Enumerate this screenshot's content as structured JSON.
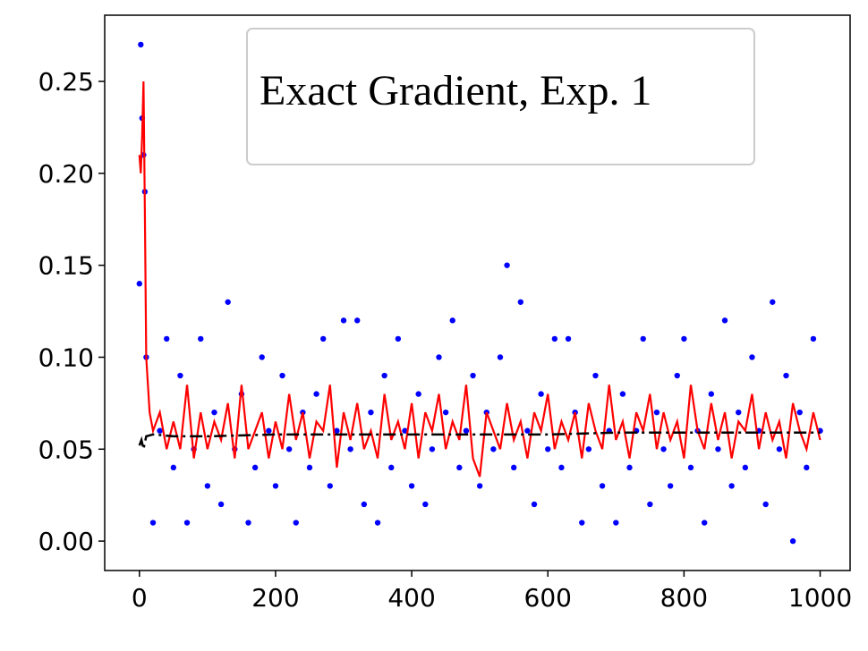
{
  "chart_data": {
    "type": "scatter",
    "legend_title": "Exact Gradient, Exp. 1",
    "xlim": [
      -51,
      1044
    ],
    "ylim": [
      -0.016,
      0.286
    ],
    "xticks": [
      0,
      200,
      400,
      600,
      800,
      1000
    ],
    "yticks": [
      {
        "value": 0,
        "label": "0.00"
      },
      {
        "value": 0.05,
        "label": "0.05"
      },
      {
        "value": 0.1,
        "label": "0.10"
      },
      {
        "value": 0.15,
        "label": "0.15"
      },
      {
        "value": 0.2,
        "label": "0.20"
      },
      {
        "value": 0.25,
        "label": "0.25"
      }
    ],
    "series": [
      {
        "mode": "markers",
        "color": "#0000ff",
        "x": [
          0,
          2,
          4,
          6,
          8,
          10,
          20,
          30,
          40,
          50,
          60,
          70,
          80,
          90,
          100,
          110,
          120,
          130,
          140,
          150,
          160,
          170,
          180,
          190,
          200,
          210,
          220,
          230,
          240,
          250,
          260,
          270,
          280,
          290,
          300,
          310,
          320,
          330,
          340,
          350,
          360,
          370,
          380,
          390,
          400,
          410,
          420,
          430,
          440,
          450,
          460,
          470,
          480,
          490,
          500,
          510,
          520,
          530,
          540,
          550,
          560,
          570,
          580,
          590,
          600,
          610,
          620,
          630,
          640,
          650,
          660,
          670,
          680,
          690,
          700,
          710,
          720,
          730,
          740,
          750,
          760,
          770,
          780,
          790,
          800,
          810,
          820,
          830,
          840,
          850,
          860,
          870,
          880,
          890,
          900,
          910,
          920,
          930,
          940,
          950,
          960,
          970,
          980,
          990,
          1000
        ],
        "values": [
          0.14,
          0.27,
          0.23,
          0.21,
          0.19,
          0.1,
          0.01,
          0.06,
          0.11,
          0.04,
          0.09,
          0.01,
          0.05,
          0.11,
          0.03,
          0.07,
          0.02,
          0.13,
          0.05,
          0.08,
          0.01,
          0.04,
          0.1,
          0.06,
          0.03,
          0.09,
          0.05,
          0.01,
          0.07,
          0.04,
          0.08,
          0.11,
          0.03,
          0.06,
          0.12,
          0.05,
          0.12,
          0.02,
          0.07,
          0.01,
          0.09,
          0.04,
          0.11,
          0.06,
          0.03,
          0.08,
          0.02,
          0.05,
          0.1,
          0.07,
          0.12,
          0.04,
          0.06,
          0.09,
          0.03,
          0.07,
          0.05,
          0.1,
          0.15,
          0.04,
          0.13,
          0.06,
          0.02,
          0.08,
          0.05,
          0.11,
          0.04,
          0.11,
          0.07,
          0.01,
          0.05,
          0.09,
          0.03,
          0.06,
          0.01,
          0.08,
          0.04,
          0.06,
          0.11,
          0.02,
          0.07,
          0.05,
          0.03,
          0.09,
          0.11,
          0.04,
          0.06,
          0.01,
          0.08,
          0.05,
          0.12,
          0.03,
          0.07,
          0.04,
          0.1,
          0.06,
          0.02,
          0.13,
          0.05,
          0.09,
          0.0,
          0.07,
          0.04,
          0.11,
          0.06
        ]
      },
      {
        "mode": "line",
        "color": "#ff0000",
        "linestyle": "solid",
        "x": [
          0,
          2,
          4,
          6,
          8,
          10,
          15,
          20,
          30,
          40,
          50,
          60,
          70,
          80,
          90,
          100,
          110,
          120,
          130,
          140,
          150,
          160,
          170,
          180,
          190,
          200,
          210,
          220,
          230,
          240,
          250,
          260,
          270,
          280,
          290,
          300,
          310,
          320,
          330,
          340,
          350,
          360,
          370,
          380,
          390,
          400,
          410,
          420,
          430,
          440,
          450,
          460,
          470,
          480,
          490,
          500,
          510,
          520,
          530,
          540,
          550,
          560,
          570,
          580,
          590,
          600,
          610,
          620,
          630,
          640,
          650,
          660,
          670,
          680,
          690,
          700,
          710,
          720,
          730,
          740,
          750,
          760,
          770,
          780,
          790,
          800,
          810,
          820,
          830,
          840,
          850,
          860,
          870,
          880,
          890,
          900,
          910,
          920,
          930,
          940,
          950,
          960,
          970,
          980,
          990,
          1000
        ],
        "values": [
          0.21,
          0.2,
          0.22,
          0.25,
          0.18,
          0.1,
          0.07,
          0.06,
          0.07,
          0.05,
          0.065,
          0.05,
          0.085,
          0.045,
          0.07,
          0.05,
          0.065,
          0.055,
          0.075,
          0.045,
          0.085,
          0.05,
          0.06,
          0.07,
          0.045,
          0.065,
          0.05,
          0.08,
          0.055,
          0.07,
          0.045,
          0.065,
          0.06,
          0.085,
          0.04,
          0.07,
          0.055,
          0.075,
          0.05,
          0.06,
          0.045,
          0.08,
          0.055,
          0.065,
          0.05,
          0.075,
          0.045,
          0.07,
          0.06,
          0.08,
          0.05,
          0.065,
          0.055,
          0.085,
          0.045,
          0.035,
          0.07,
          0.06,
          0.05,
          0.075,
          0.055,
          0.065,
          0.045,
          0.07,
          0.06,
          0.08,
          0.05,
          0.065,
          0.055,
          0.07,
          0.045,
          0.075,
          0.06,
          0.05,
          0.085,
          0.055,
          0.065,
          0.045,
          0.07,
          0.06,
          0.08,
          0.05,
          0.07,
          0.055,
          0.065,
          0.045,
          0.085,
          0.06,
          0.05,
          0.075,
          0.055,
          0.07,
          0.045,
          0.065,
          0.06,
          0.08,
          0.05,
          0.07,
          0.055,
          0.065,
          0.045,
          0.075,
          0.06,
          0.05,
          0.07,
          0.055
        ]
      },
      {
        "mode": "line",
        "color": "#000000",
        "linestyle": "dashed",
        "x": [
          0,
          3,
          6,
          10,
          20,
          50,
          100,
          200,
          300,
          400,
          500,
          600,
          700,
          800,
          900,
          1000
        ],
        "values": [
          0.052,
          0.055,
          0.05,
          0.057,
          0.058,
          0.057,
          0.057,
          0.058,
          0.058,
          0.058,
          0.058,
          0.058,
          0.059,
          0.059,
          0.059,
          0.059
        ]
      }
    ]
  }
}
